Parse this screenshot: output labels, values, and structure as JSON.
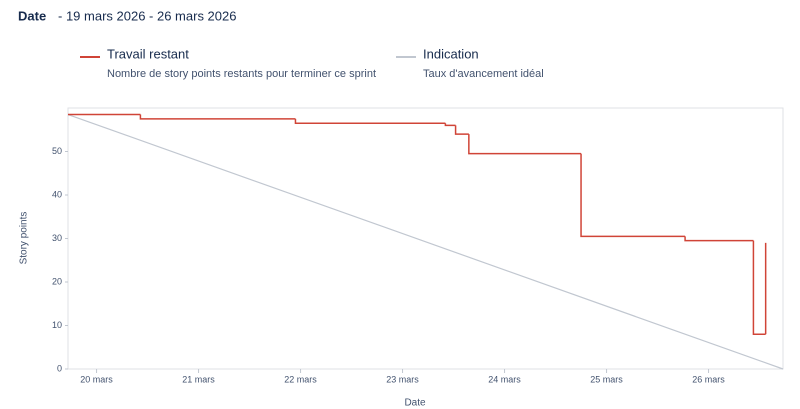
{
  "header": {
    "label": "Date",
    "range": "- 19 mars 2026 - 26 mars 2026"
  },
  "chart_data": {
    "type": "step-line",
    "xlabel": "Date",
    "ylabel": "Story points",
    "xlim": [
      19.72,
      26.73
    ],
    "ylim": [
      0,
      60
    ],
    "xticks": [
      {
        "value": 20,
        "label": "20 mars"
      },
      {
        "value": 21,
        "label": "21 mars"
      },
      {
        "value": 22,
        "label": "22 mars"
      },
      {
        "value": 23,
        "label": "23 mars"
      },
      {
        "value": 24,
        "label": "24 mars"
      },
      {
        "value": 25,
        "label": "25 mars"
      },
      {
        "value": 26,
        "label": "26 mars"
      }
    ],
    "yticks": [
      0,
      10,
      20,
      30,
      40,
      50
    ],
    "series": [
      {
        "name": "Travail restant",
        "description": "Nombre de story points restants pour terminer ce sprint",
        "color": "#d04437",
        "step": true,
        "x": [
          19.72,
          20.43,
          21.95,
          23.42,
          23.52,
          23.65,
          24.75,
          25.77,
          26.44,
          26.56
        ],
        "values": [
          58.5,
          57.5,
          56.5,
          56,
          54,
          49.5,
          30.5,
          29.5,
          8,
          29
        ]
      },
      {
        "name": "Indication",
        "description": "Taux d'avancement idéal",
        "color": "#c1c7d0",
        "step": false,
        "x": [
          19.72,
          26.73
        ],
        "values": [
          58.5,
          0
        ]
      }
    ]
  }
}
